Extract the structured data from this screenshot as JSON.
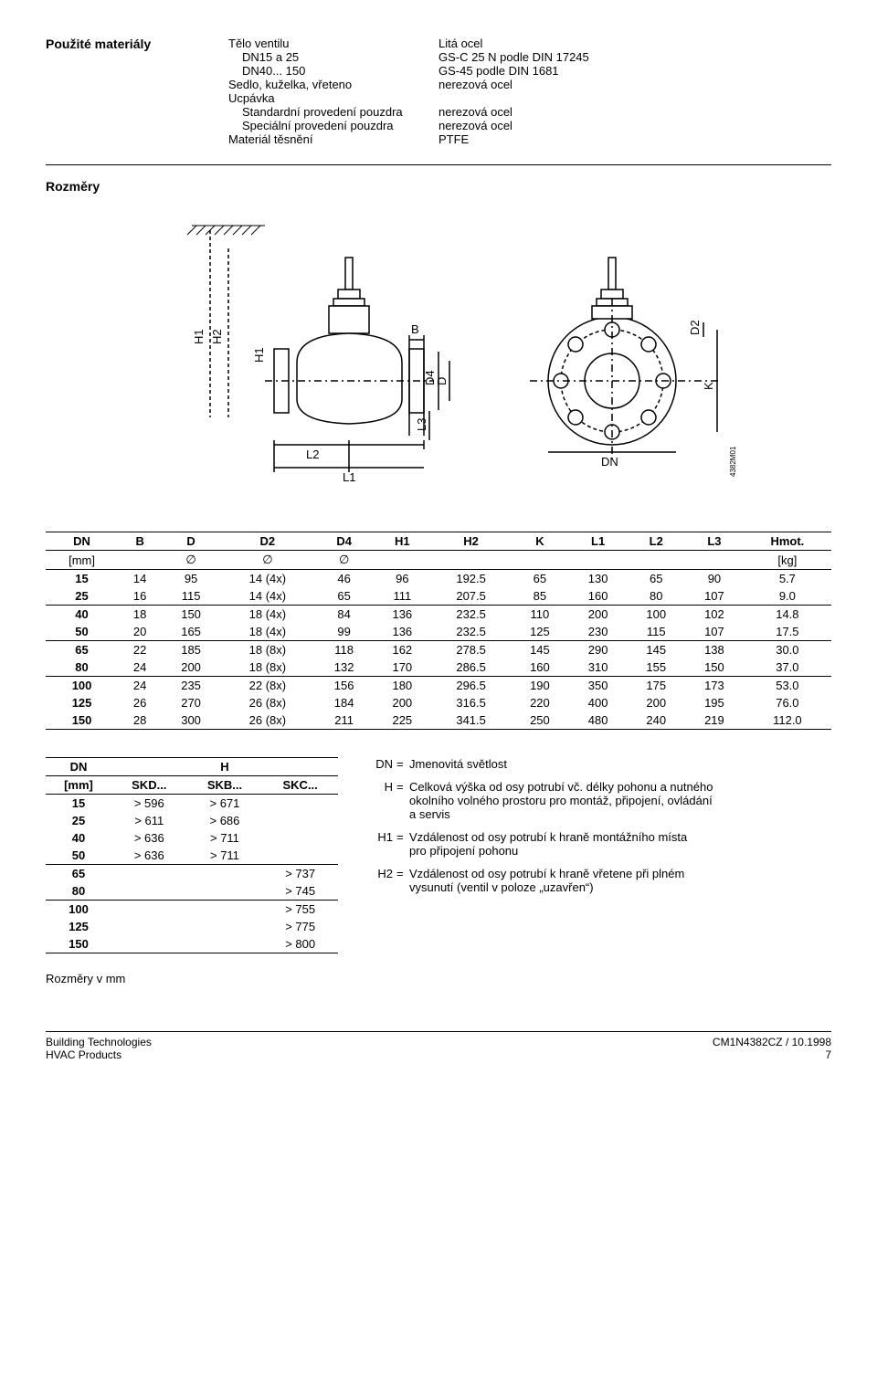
{
  "materials": {
    "title": "Použité materiály",
    "col2": [
      "Tělo ventilu",
      "  DN15 a 25",
      "  DN40... 150",
      "Sedlo, kuželka, vřeteno",
      "Ucpávka",
      "  Standardní provedení pouzdra",
      "  Speciální provedení pouzdra",
      "Materiál těsnění"
    ],
    "col3": [
      "Litá ocel",
      "GS-C 25 N podle DIN 17245",
      "GS-45 podle DIN 1681",
      "nerezová ocel",
      "",
      "nerezová ocel",
      "nerezová ocel",
      "PTFE"
    ]
  },
  "dims": {
    "title": "Rozměry",
    "diagram_labels": {
      "H1": "H1",
      "H2": "H2",
      "H1b": "H1",
      "B": "B",
      "D4": "D4",
      "D": "D",
      "L3": "L3",
      "L2": "L2",
      "L1": "L1",
      "DN": "DN",
      "D2": "D2",
      "K": "K",
      "code": "4382M01"
    }
  },
  "dim_table": {
    "headers": [
      "DN",
      "B",
      "D",
      "D2",
      "D4",
      "H1",
      "H2",
      "K",
      "L1",
      "L2",
      "L3",
      "Hmot."
    ],
    "sub": [
      "[mm]",
      "",
      "∅",
      "∅",
      "∅",
      "",
      "",
      "",
      "",
      "",
      "",
      "[kg]"
    ],
    "rows": [
      [
        "15",
        "14",
        "95",
        "14 (4x)",
        "46",
        "96",
        "192.5",
        "65",
        "130",
        "65",
        "90",
        "5.7"
      ],
      [
        "25",
        "16",
        "115",
        "14 (4x)",
        "65",
        "111",
        "207.5",
        "85",
        "160",
        "80",
        "107",
        "9.0"
      ],
      [
        "40",
        "18",
        "150",
        "18 (4x)",
        "84",
        "136",
        "232.5",
        "110",
        "200",
        "100",
        "102",
        "14.8"
      ],
      [
        "50",
        "20",
        "165",
        "18 (4x)",
        "99",
        "136",
        "232.5",
        "125",
        "230",
        "115",
        "107",
        "17.5"
      ],
      [
        "65",
        "22",
        "185",
        "18 (8x)",
        "118",
        "162",
        "278.5",
        "145",
        "290",
        "145",
        "138",
        "30.0"
      ],
      [
        "80",
        "24",
        "200",
        "18 (8x)",
        "132",
        "170",
        "286.5",
        "160",
        "310",
        "155",
        "150",
        "37.0"
      ],
      [
        "100",
        "24",
        "235",
        "22 (8x)",
        "156",
        "180",
        "296.5",
        "190",
        "350",
        "175",
        "173",
        "53.0"
      ],
      [
        "125",
        "26",
        "270",
        "26 (8x)",
        "184",
        "200",
        "316.5",
        "220",
        "400",
        "200",
        "195",
        "76.0"
      ],
      [
        "150",
        "28",
        "300",
        "26 (8x)",
        "211",
        "225",
        "341.5",
        "250",
        "480",
        "240",
        "219",
        "112.0"
      ]
    ],
    "rules_after": [
      1,
      3,
      5
    ]
  },
  "h_table": {
    "head1": [
      "DN",
      "",
      "H",
      ""
    ],
    "head2": [
      "[mm]",
      "SKD...",
      "SKB...",
      "SKC..."
    ],
    "rows": [
      [
        "15",
        "> 596",
        "> 671",
        ""
      ],
      [
        "25",
        "> 611",
        "> 686",
        ""
      ],
      [
        "40",
        "> 636",
        "> 711",
        ""
      ],
      [
        "50",
        "> 636",
        "> 711",
        ""
      ],
      [
        "65",
        "",
        "",
        "> 737"
      ],
      [
        "80",
        "",
        "",
        "> 745"
      ],
      [
        "100",
        "",
        "",
        "> 755"
      ],
      [
        "125",
        "",
        "",
        "> 775"
      ],
      [
        "150",
        "",
        "",
        "> 800"
      ]
    ],
    "rules_after": [
      3,
      5
    ]
  },
  "legend": {
    "items": [
      {
        "key": "DN",
        "eq": "=",
        "lines": [
          "Jmenovitá světlost"
        ]
      },
      {
        "key": "H",
        "eq": "=",
        "lines": [
          "Celková výška od osy potrubí vč. délky pohonu a nutného",
          "okolního  volného prostoru pro montáž, připojení, ovládání",
          "a servis"
        ]
      },
      {
        "key": "H1",
        "eq": "=",
        "lines": [
          "Vzdálenost od osy potrubí k hraně montážního místa",
          "pro připojení pohonu"
        ]
      },
      {
        "key": "H2",
        "eq": "=",
        "lines": [
          "Vzdálenost od osy potrubí k hraně vřetene při plném",
          "vysunutí (ventil v poloze „uzavřen“)"
        ]
      }
    ]
  },
  "note": "Rozměry v mm",
  "footer": {
    "left1": "Building Technologies",
    "left2": "HVAC Products",
    "right1": "CM1N4382CZ / 10.1998",
    "right2": "7"
  }
}
